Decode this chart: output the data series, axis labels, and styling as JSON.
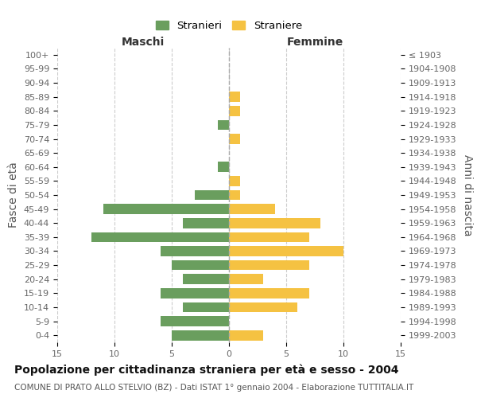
{
  "age_groups": [
    "0-4",
    "5-9",
    "10-14",
    "15-19",
    "20-24",
    "25-29",
    "30-34",
    "35-39",
    "40-44",
    "45-49",
    "50-54",
    "55-59",
    "60-64",
    "65-69",
    "70-74",
    "75-79",
    "80-84",
    "85-89",
    "90-94",
    "95-99",
    "100+"
  ],
  "birth_years": [
    "1999-2003",
    "1994-1998",
    "1989-1993",
    "1984-1988",
    "1979-1983",
    "1974-1978",
    "1969-1973",
    "1964-1968",
    "1959-1963",
    "1954-1958",
    "1949-1953",
    "1944-1948",
    "1939-1943",
    "1934-1938",
    "1929-1933",
    "1924-1928",
    "1919-1923",
    "1914-1918",
    "1909-1913",
    "1904-1908",
    "≤ 1903"
  ],
  "males": [
    5,
    6,
    4,
    6,
    4,
    5,
    6,
    12,
    4,
    11,
    3,
    0,
    1,
    0,
    0,
    1,
    0,
    0,
    0,
    0,
    0
  ],
  "females": [
    3,
    0,
    6,
    7,
    3,
    7,
    10,
    7,
    8,
    4,
    1,
    1,
    0,
    0,
    1,
    0,
    1,
    1,
    0,
    0,
    0
  ],
  "male_color": "#6a9e5e",
  "female_color": "#f5c242",
  "background_color": "#ffffff",
  "grid_color": "#cccccc",
  "title": "Popolazione per cittadinanza straniera per età e sesso - 2004",
  "subtitle": "COMUNE DI PRATO ALLO STELVIO (BZ) - Dati ISTAT 1° gennaio 2004 - Elaborazione TUTTITALIA.IT",
  "ylabel_left": "Fasce di età",
  "ylabel_right": "Anni di nascita",
  "xlabel_left": "Maschi",
  "xlabel_right": "Femmine",
  "legend_male": "Stranieri",
  "legend_female": "Straniere",
  "xlim": 15,
  "tick_fontsize": 8,
  "label_fontsize": 10,
  "title_fontsize": 10,
  "subtitle_fontsize": 7.5
}
